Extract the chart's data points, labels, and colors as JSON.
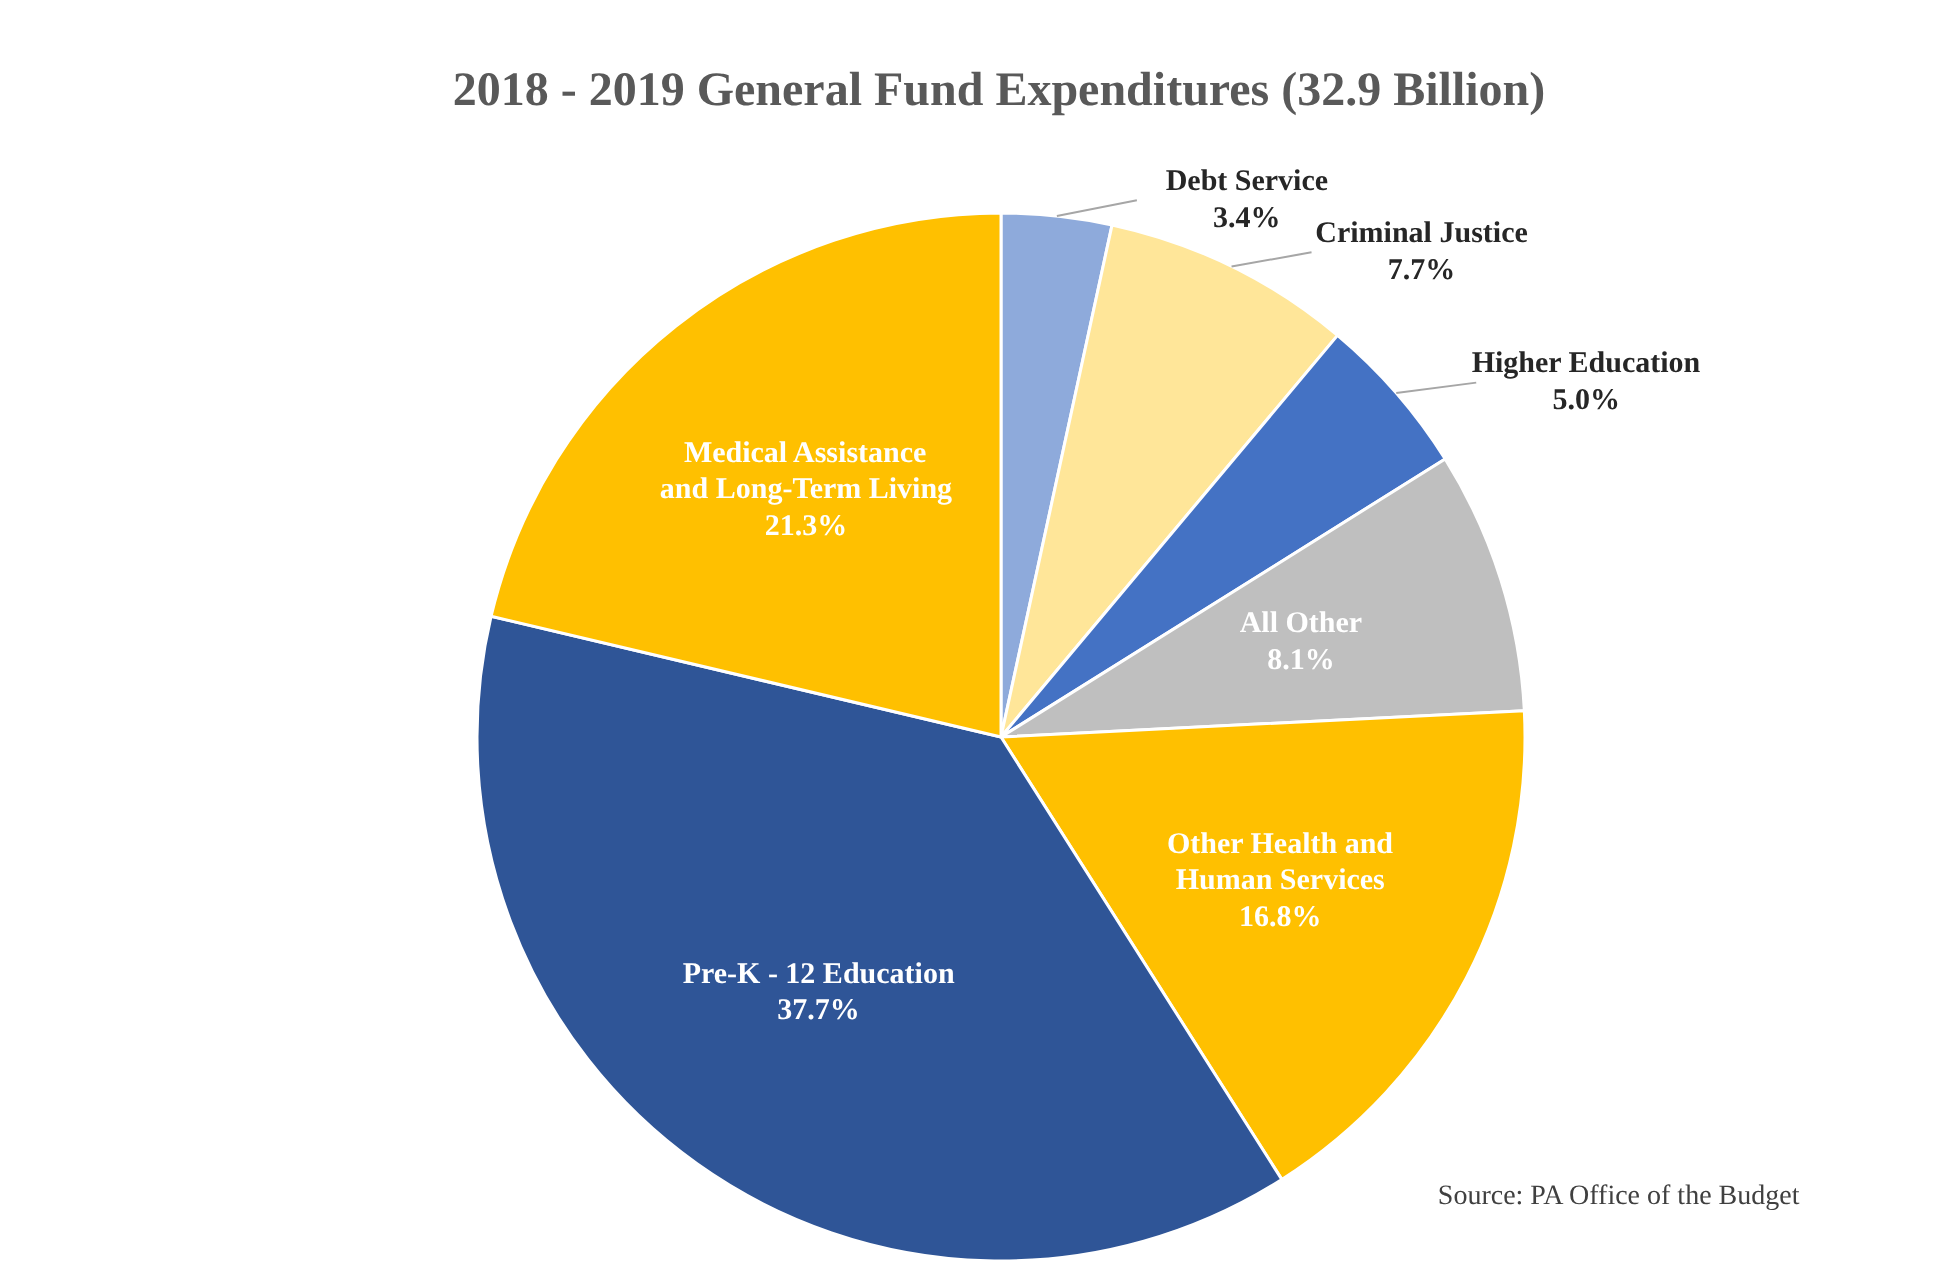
{
  "chart_data": {
    "type": "pie",
    "title": "2018 - 2019 General Fund Expenditures   (32.9 Billion)",
    "categories": [
      "Debt Service",
      "Criminal Justice",
      "Higher Education",
      "All Other",
      "Other Health and Human Services",
      "Pre-K - 12 Education",
      "Medical Assistance and Long-Term Living"
    ],
    "values": [
      3.4,
      7.7,
      5.0,
      8.1,
      16.8,
      37.7,
      21.3
    ],
    "colors": [
      "#8eaadb",
      "#ffe699",
      "#4472c4",
      "#bfbfbf",
      "#ffc000",
      "#2f5597",
      "#ffc000"
    ],
    "value_labels": [
      "3.4%",
      "7.7%",
      "5.0%",
      "8.1%",
      "16.8%",
      "37.7%",
      "21.3%"
    ],
    "annotations": [
      "Source: PA Office of the Budget"
    ]
  }
}
